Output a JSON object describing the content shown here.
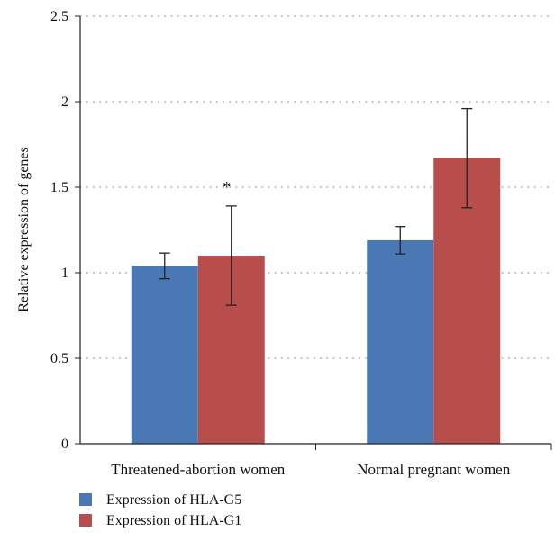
{
  "chart_data": {
    "type": "bar",
    "title": "",
    "xlabel": "",
    "ylabel": "Relative expression of genes",
    "ylim": [
      0,
      2.5
    ],
    "yticks": [
      "0",
      "0.5",
      "1",
      "1.5",
      "2",
      "2.5"
    ],
    "grid": "horizontal dotted",
    "legend_position": "bottom-left",
    "categories": [
      "Threatened-abortion women",
      "Normal pregnant women"
    ],
    "series": [
      {
        "name": "Expression of HLA-G5",
        "color": "#4a78b5",
        "values": [
          1.04,
          1.19
        ],
        "error": [
          0.075,
          0.08
        ]
      },
      {
        "name": "Expression of HLA-G1",
        "color": "#b74e4b",
        "values": [
          1.1,
          1.67
        ],
        "error": [
          0.29,
          0.29
        ]
      }
    ],
    "annotations": [
      {
        "text": "*",
        "category": 0,
        "series": 1
      }
    ]
  }
}
